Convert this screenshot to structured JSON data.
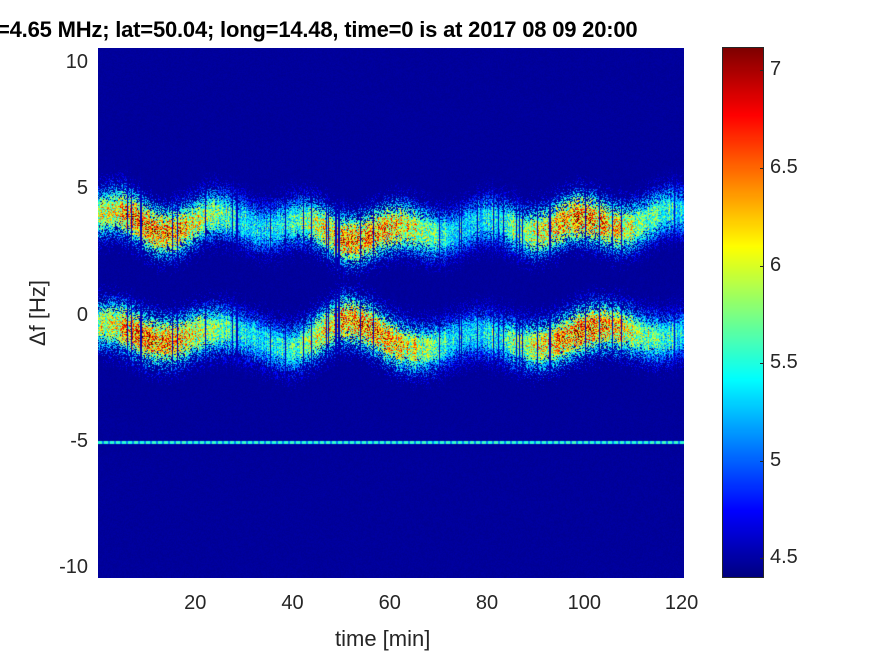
{
  "chart_data": {
    "type": "heatmap",
    "title": "=4.65 MHz;  lat=50.04; long=14.48, time=0 is at 2017 08 09 20:00",
    "xlabel": "time [min]",
    "ylabel": "Δf [Hz]",
    "xlim": [
      0,
      120.5
    ],
    "ylim": [
      -10.4,
      10.6
    ],
    "xticks": [
      "20",
      "40",
      "60",
      "80",
      "100",
      "120"
    ],
    "xtick_values": [
      20,
      40,
      60,
      80,
      100,
      120
    ],
    "yticks": [
      "10",
      "5",
      "0",
      "-5",
      "-10"
    ],
    "ytick_values": [
      10,
      5,
      0,
      -5,
      -10
    ],
    "colorbar": {
      "colormap": "jet",
      "range": [
        4.4,
        7.12
      ],
      "ticks": [
        "7",
        "6.5",
        "6",
        "5.5",
        "5",
        "4.5"
      ],
      "tick_values": [
        7,
        6.5,
        6,
        5.5,
        5,
        4.5
      ]
    },
    "background_value": 4.45,
    "bands": [
      {
        "name": "upper Doppler band",
        "time": [
          0,
          10,
          20,
          30,
          40,
          50,
          60,
          70,
          80,
          90,
          100,
          110,
          120
        ],
        "center_hz": [
          4.0,
          3.6,
          3.6,
          3.9,
          3.5,
          3.3,
          3.2,
          3.5,
          3.5,
          3.6,
          3.6,
          3.8,
          3.9
        ],
        "peak_value": 6.9
      },
      {
        "name": "lower Doppler band",
        "time": [
          0,
          10,
          20,
          30,
          40,
          50,
          60,
          70,
          80,
          90,
          100,
          110,
          120
        ],
        "center_hz": [
          -0.6,
          -0.8,
          -0.6,
          -1.0,
          -1.0,
          -0.4,
          -0.9,
          -1.1,
          -1.0,
          -0.9,
          -0.8,
          -0.6,
          -0.6
        ],
        "peak_value": 6.8
      },
      {
        "name": "reference line",
        "center_hz": -5.0,
        "peak_value": 5.5
      }
    ]
  }
}
